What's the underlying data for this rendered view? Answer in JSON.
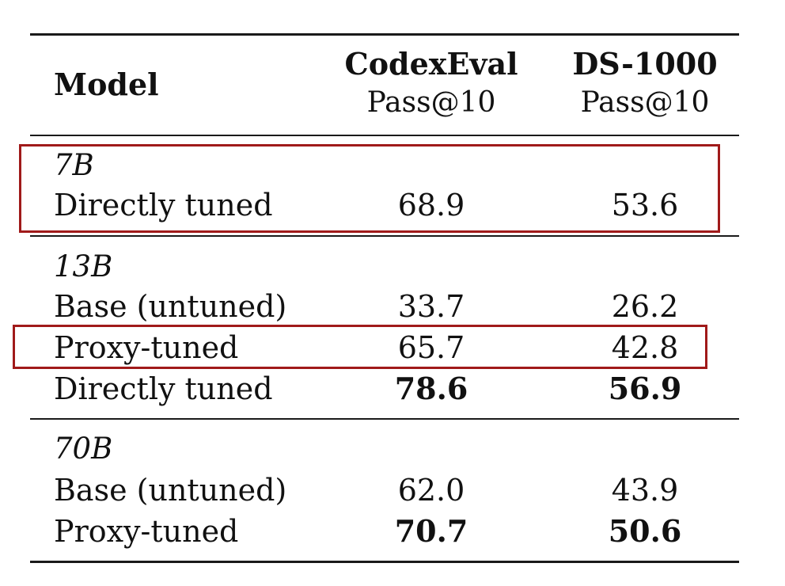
{
  "header": {
    "model": "Model",
    "codex_title": "CodexEval",
    "codex_metric": "Pass@10",
    "ds_title": "DS-1000",
    "ds_metric": "Pass@10"
  },
  "groups": [
    {
      "label": "7B",
      "rows": [
        {
          "name": "Directly tuned",
          "codex": "68.9",
          "ds": "53.6",
          "codex_bold": false,
          "ds_bold": false
        }
      ]
    },
    {
      "label": "13B",
      "rows": [
        {
          "name": "Base (untuned)",
          "codex": "33.7",
          "ds": "26.2",
          "codex_bold": false,
          "ds_bold": false
        },
        {
          "name": "Proxy-tuned",
          "codex": "65.7",
          "ds": "42.8",
          "codex_bold": false,
          "ds_bold": false
        },
        {
          "name": "Directly tuned",
          "codex": "78.6",
          "ds": "56.9",
          "codex_bold": true,
          "ds_bold": true
        }
      ]
    },
    {
      "label": "70B",
      "rows": [
        {
          "name": "Base (untuned)",
          "codex": "62.0",
          "ds": "43.9",
          "codex_bold": false,
          "ds_bold": false
        },
        {
          "name": "Proxy-tuned",
          "codex": "70.7",
          "ds": "50.6",
          "codex_bold": true,
          "ds_bold": true
        }
      ]
    }
  ],
  "highlight_color": "#a01a1a"
}
